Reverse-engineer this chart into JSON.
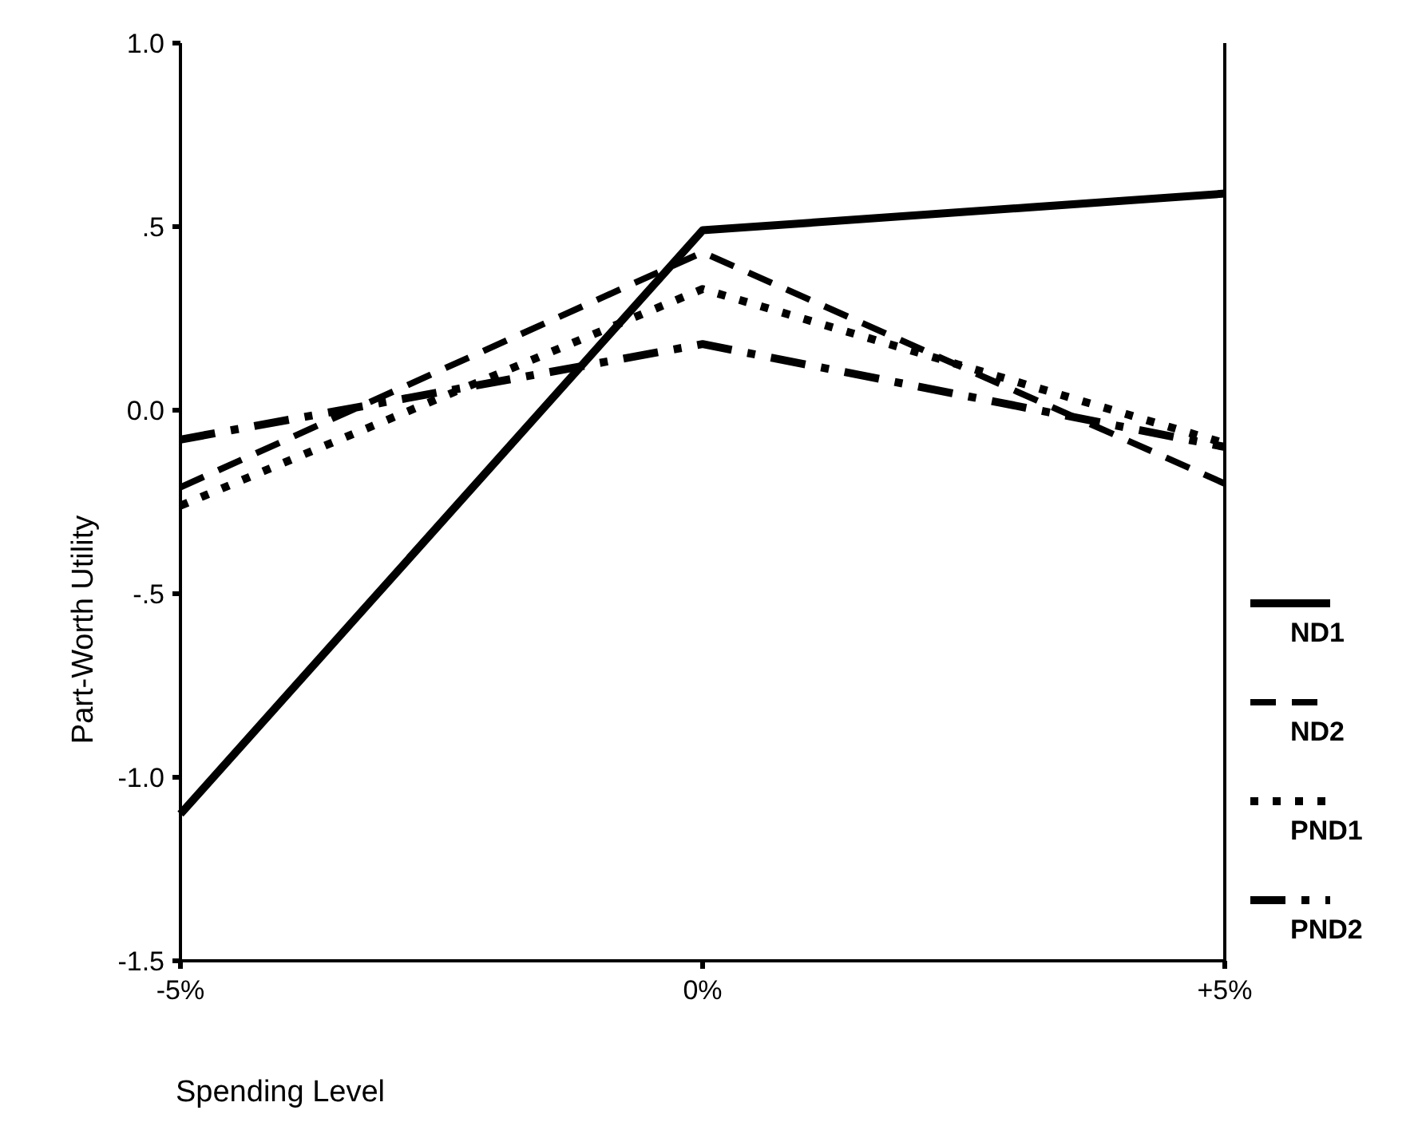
{
  "chart_data": {
    "type": "line",
    "xlabel": "Spending Level",
    "ylabel": "Part-Worth Utility",
    "categories": [
      "-5%",
      "0%",
      "+5%"
    ],
    "ylim": [
      -1.5,
      1.0
    ],
    "yticks": [
      {
        "value": -1.5,
        "label": "-1.5"
      },
      {
        "value": -1.0,
        "label": "-1.0"
      },
      {
        "value": -0.5,
        "label": "-.5"
      },
      {
        "value": 0,
        "label": "0.0"
      },
      {
        "value": 0.5,
        "label": ".5"
      },
      {
        "value": 1.0,
        "label": "1.0"
      }
    ],
    "grid": false,
    "legend": "right",
    "marker": "none",
    "series": [
      {
        "name": "ND1",
        "color": "#000000",
        "line_style": "solid",
        "values": [
          -1.1,
          0.49,
          0.59
        ]
      },
      {
        "name": "ND2",
        "color": "#000000",
        "line_style": "dashed",
        "values": [
          -0.21,
          0.43,
          -0.2
        ]
      },
      {
        "name": "PND1",
        "color": "#000000",
        "line_style": "dotted",
        "values": [
          -0.26,
          0.33,
          -0.09
        ]
      },
      {
        "name": "PND2",
        "color": "#000000",
        "line_style": "dashdot",
        "values": [
          -0.08,
          0.18,
          -0.1
        ]
      }
    ]
  }
}
